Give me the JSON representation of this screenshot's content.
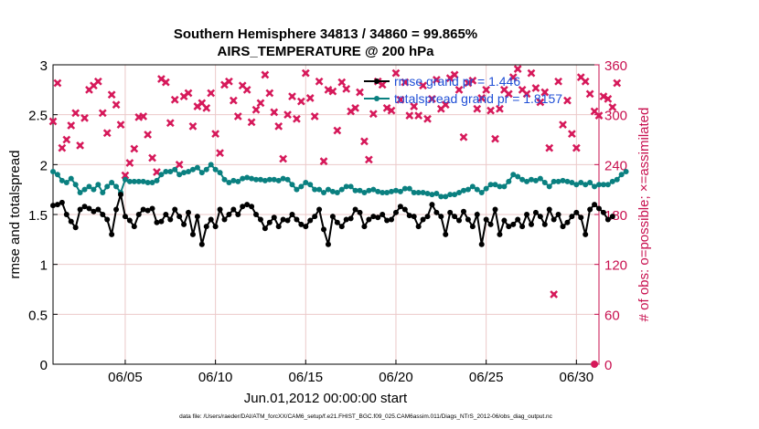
{
  "chart_data": {
    "type": "line",
    "title": "Southern Hemisphere 34813 / 34860 = 99.865%",
    "subtitle": "AIRS_TEMPERATURE @ 200 hPa",
    "xlabel": "Jun.01,2012 00:00:00 start",
    "ylabel": "rmse and totalspread",
    "y2label": "# of obs: o=possible; ×=assimilated",
    "footer": "data file: /Users/raeder/DAI/ATM_forcXX/CAM6_setup/f.e21.FHIST_BGC.f09_025.CAM6assim.011/Diags_NTrS_2012-06/obs_diag_output.nc",
    "xlim": [
      1.0,
      31.25
    ],
    "ylim": [
      0,
      3
    ],
    "y2lim": [
      0,
      360
    ],
    "x_ticks": [
      5,
      10,
      15,
      20,
      25,
      30
    ],
    "x_tick_labels": [
      "06/05",
      "06/10",
      "06/15",
      "06/20",
      "06/25",
      "06/30"
    ],
    "y_ticks": [
      0,
      0.5,
      1,
      1.5,
      2,
      2.5,
      3
    ],
    "y_tick_labels": [
      "0",
      "0.5",
      "1",
      "1.5",
      "2",
      "2.5",
      "3"
    ],
    "y2_ticks": [
      0,
      60,
      120,
      180,
      240,
      300,
      360
    ],
    "y2_tick_labels": [
      "0",
      "60",
      "120",
      "180",
      "240",
      "300",
      "360"
    ],
    "grid": true,
    "legend_position": "top-right",
    "colors": {
      "rmse": "#000000",
      "spread": "#0a8080",
      "obs": "#d6195a",
      "legend_text": "#1f4fd6",
      "grid": "#ebc9c9",
      "right_axis": "#c8104f"
    },
    "series": [
      {
        "name": "rmse grand pr = 1.446",
        "axis": "left",
        "x_start": 1.0,
        "x_step": 0.25,
        "values": [
          1.59,
          1.6,
          1.62,
          1.5,
          1.43,
          1.37,
          1.55,
          1.58,
          1.56,
          1.53,
          1.55,
          1.5,
          1.45,
          1.3,
          1.55,
          1.7,
          1.48,
          1.44,
          1.38,
          1.5,
          1.55,
          1.54,
          1.56,
          1.42,
          1.43,
          1.5,
          1.45,
          1.55,
          1.48,
          1.4,
          1.52,
          1.3,
          1.48,
          1.2,
          1.38,
          1.45,
          1.38,
          1.55,
          1.45,
          1.5,
          1.55,
          1.5,
          1.58,
          1.6,
          1.58,
          1.5,
          1.45,
          1.36,
          1.42,
          1.47,
          1.38,
          1.45,
          1.44,
          1.5,
          1.45,
          1.4,
          1.38,
          1.44,
          1.48,
          1.55,
          1.35,
          1.2,
          1.48,
          1.42,
          1.38,
          1.45,
          1.46,
          1.55,
          1.52,
          1.38,
          1.45,
          1.48,
          1.47,
          1.5,
          1.44,
          1.45,
          1.52,
          1.58,
          1.55,
          1.49,
          1.48,
          1.38,
          1.45,
          1.48,
          1.6,
          1.52,
          1.48,
          1.3,
          1.52,
          1.48,
          1.44,
          1.53,
          1.45,
          1.38,
          1.5,
          1.2,
          1.45,
          1.4,
          1.55,
          1.3,
          1.44,
          1.38,
          1.4,
          1.45,
          1.38,
          1.5,
          1.4,
          1.52,
          1.48,
          1.4,
          1.55,
          1.45,
          1.5,
          1.38,
          1.42,
          1.48,
          1.52,
          1.47,
          1.3,
          1.55,
          1.6,
          1.56,
          1.52,
          1.45,
          1.48
        ],
        "marker": "filled-circle"
      },
      {
        "name": "totalspread grand pr = 1.8157",
        "axis": "left",
        "x_start": 1.0,
        "x_step": 0.25,
        "values": [
          1.93,
          1.9,
          1.84,
          1.82,
          1.86,
          1.8,
          1.72,
          1.75,
          1.78,
          1.75,
          1.8,
          1.72,
          1.78,
          1.82,
          1.78,
          1.72,
          1.85,
          1.83,
          1.83,
          1.83,
          1.83,
          1.82,
          1.82,
          1.84,
          1.9,
          1.93,
          1.93,
          1.95,
          1.9,
          1.92,
          1.93,
          1.95,
          1.97,
          1.92,
          1.95,
          2.0,
          1.95,
          1.92,
          1.85,
          1.82,
          1.84,
          1.83,
          1.86,
          1.87,
          1.86,
          1.85,
          1.85,
          1.84,
          1.85,
          1.85,
          1.84,
          1.86,
          1.85,
          1.8,
          1.75,
          1.78,
          1.82,
          1.8,
          1.75,
          1.75,
          1.72,
          1.75,
          1.73,
          1.72,
          1.75,
          1.78,
          1.78,
          1.74,
          1.74,
          1.72,
          1.74,
          1.75,
          1.73,
          1.72,
          1.72,
          1.73,
          1.74,
          1.73,
          1.76,
          1.76,
          1.72,
          1.72,
          1.72,
          1.71,
          1.7,
          1.71,
          1.68,
          1.68,
          1.7,
          1.7,
          1.72,
          1.74,
          1.75,
          1.78,
          1.75,
          1.72,
          1.76,
          1.8,
          1.8,
          1.78,
          1.78,
          1.83,
          1.9,
          1.88,
          1.85,
          1.83,
          1.85,
          1.84,
          1.86,
          1.82,
          1.78,
          1.83,
          1.83,
          1.84,
          1.83,
          1.82,
          1.8,
          1.82,
          1.8,
          1.82,
          1.78,
          1.8,
          1.8,
          1.8,
          1.83,
          1.85,
          1.9,
          1.93
        ],
        "marker": "filled-circle"
      },
      {
        "name": "# obs assimilated",
        "axis": "right",
        "x_start": 1.0,
        "x_step": 0.25,
        "marker": "x",
        "values": [
          292,
          338,
          260,
          270,
          287,
          302,
          263,
          296,
          330,
          335,
          340,
          302,
          278,
          324,
          312,
          288,
          227,
          242,
          259,
          297,
          298,
          276,
          248,
          231,
          343,
          339,
          290,
          318,
          240,
          322,
          326,
          286,
          310,
          314,
          308,
          326,
          277,
          254,
          336,
          340,
          317,
          298,
          335,
          330,
          291,
          306,
          314,
          348,
          326,
          303,
          286,
          247,
          300,
          322,
          295,
          316,
          350,
          320,
          298,
          340,
          244,
          330,
          328,
          281,
          339,
          331,
          304,
          308,
          327,
          268,
          246,
          301,
          340,
          336,
          308,
          305,
          350,
          318,
          339,
          299,
          310,
          299,
          335,
          295,
          319,
          342,
          307,
          312,
          344,
          348,
          330,
          273,
          338,
          341,
          307,
          320,
          330,
          305,
          271,
          307,
          330,
          325,
          345,
          355,
          330,
          325,
          350,
          332,
          315,
          327,
          260,
          84,
          340,
          288,
          317,
          277,
          260,
          345,
          340,
          325,
          304,
          299,
          322,
          319,
          309,
          338
        ]
      },
      {
        "name": "# obs possible",
        "axis": "right",
        "marker": "circle",
        "x": [
          31
        ],
        "values": [
          0
        ]
      }
    ]
  }
}
